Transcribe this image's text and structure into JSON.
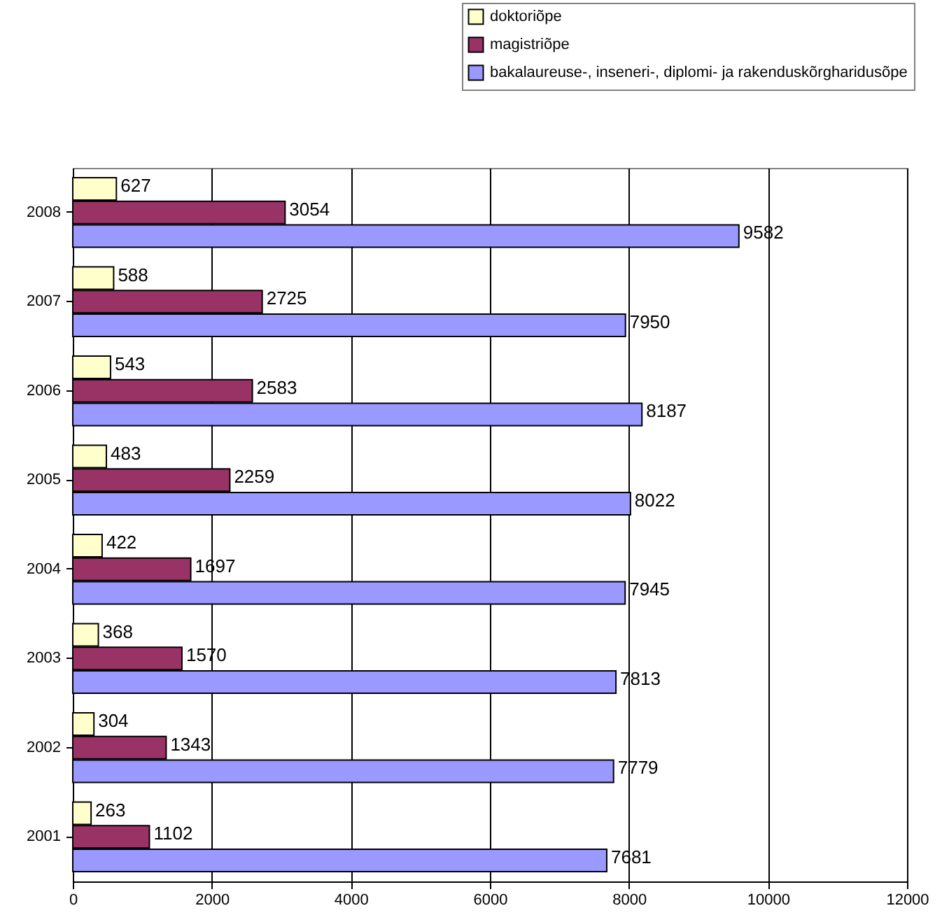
{
  "chart_data": {
    "type": "bar",
    "orientation": "horizontal",
    "categories": [
      "2008",
      "2007",
      "2006",
      "2005",
      "2004",
      "2003",
      "2002",
      "2001"
    ],
    "series": [
      {
        "name": "doktoriõpe",
        "color": "#ffffcc",
        "values": [
          627,
          588,
          543,
          483,
          422,
          368,
          304,
          263
        ]
      },
      {
        "name": "magistriõpe",
        "color": "#993366",
        "values": [
          3054,
          2725,
          2583,
          2259,
          1697,
          1570,
          1343,
          1102
        ]
      },
      {
        "name": "bakalaureuse-, inseneri-, diplomi- ja rakenduskõrgharidusõpe",
        "color": "#9999ff",
        "values": [
          9582,
          7950,
          8187,
          8022,
          7945,
          7813,
          7779,
          7681
        ]
      }
    ],
    "xlim": [
      0,
      12000
    ],
    "xticks": [
      0,
      2000,
      4000,
      6000,
      8000,
      10000,
      12000
    ],
    "grid": "x",
    "legend": "top",
    "data_labels": true
  }
}
